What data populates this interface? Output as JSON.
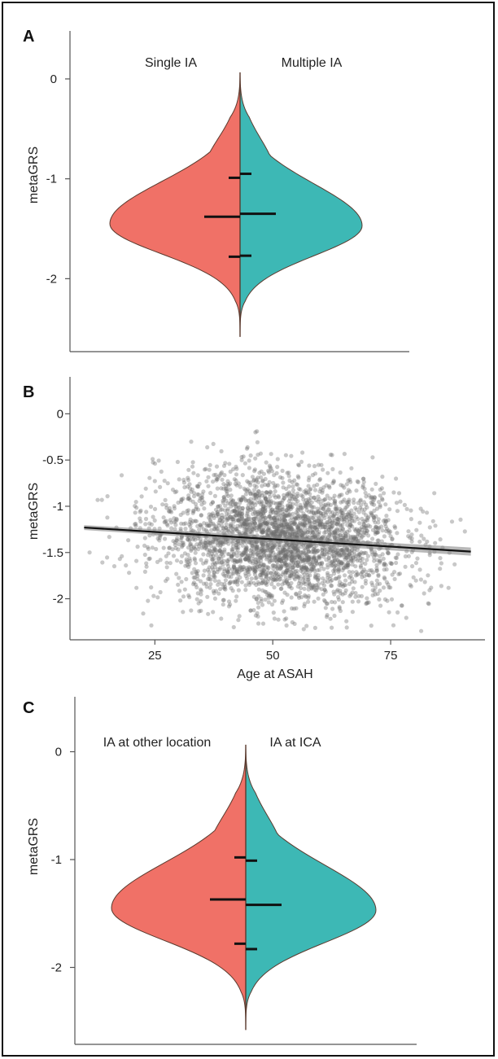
{
  "colors": {
    "left_group": "#f07167",
    "right_group": "#3db8b5",
    "outline": "#5a3a2e",
    "points": "#6e6e6e",
    "trend": "#111111"
  },
  "chart_data": [
    {
      "type": "violin",
      "panel": "A",
      "ylabel": "metaGRS",
      "ylim": [
        -2.6,
        0.35
      ],
      "y_ticks": [
        0,
        -1,
        -2
      ],
      "y_tick_labels": [
        "0",
        "-1",
        "-2"
      ],
      "groups": [
        {
          "name": "Single IA",
          "side": "left",
          "quartiles": {
            "q1": -1.78,
            "median": -1.38,
            "q3": -0.99
          }
        },
        {
          "name": "Multiple IA",
          "side": "right",
          "quartiles": {
            "q1": -1.77,
            "median": -1.35,
            "q3": -0.95
          }
        }
      ]
    },
    {
      "type": "scatter",
      "panel": "B",
      "xlabel": "Age at ASAH",
      "ylabel": "metaGRS",
      "xlim": [
        7,
        95
      ],
      "ylim": [
        -2.4,
        0.1
      ],
      "x_ticks": [
        25,
        50,
        75
      ],
      "x_tick_labels": [
        "25",
        "50",
        "75"
      ],
      "y_ticks": [
        0,
        -0.5,
        -1,
        -1.5,
        -2
      ],
      "y_tick_labels": [
        "0",
        "-0.5",
        "-1",
        "-1.5",
        "-2"
      ],
      "trend_line": {
        "x": [
          10,
          92
        ],
        "y": [
          -1.23,
          -1.49
        ]
      },
      "point_cloud": {
        "n": 3200,
        "x_mean": 52,
        "x_sd": 13,
        "y_mean": -1.38,
        "y_sd": 0.35,
        "y_min": -2.35,
        "y_max": 0.05
      }
    },
    {
      "type": "violin",
      "panel": "C",
      "ylabel": "metaGRS",
      "ylim": [
        -2.6,
        0.2
      ],
      "y_ticks": [
        0,
        -1,
        -2
      ],
      "y_tick_labels": [
        "0",
        "-1",
        "-2"
      ],
      "groups": [
        {
          "name": "IA at other location",
          "side": "left",
          "quartiles": {
            "q1": -1.78,
            "median": -1.37,
            "q3": -0.98
          }
        },
        {
          "name": "IA at ICA",
          "side": "right",
          "quartiles": {
            "q1": -1.83,
            "median": -1.42,
            "q3": -1.01
          }
        }
      ]
    }
  ]
}
